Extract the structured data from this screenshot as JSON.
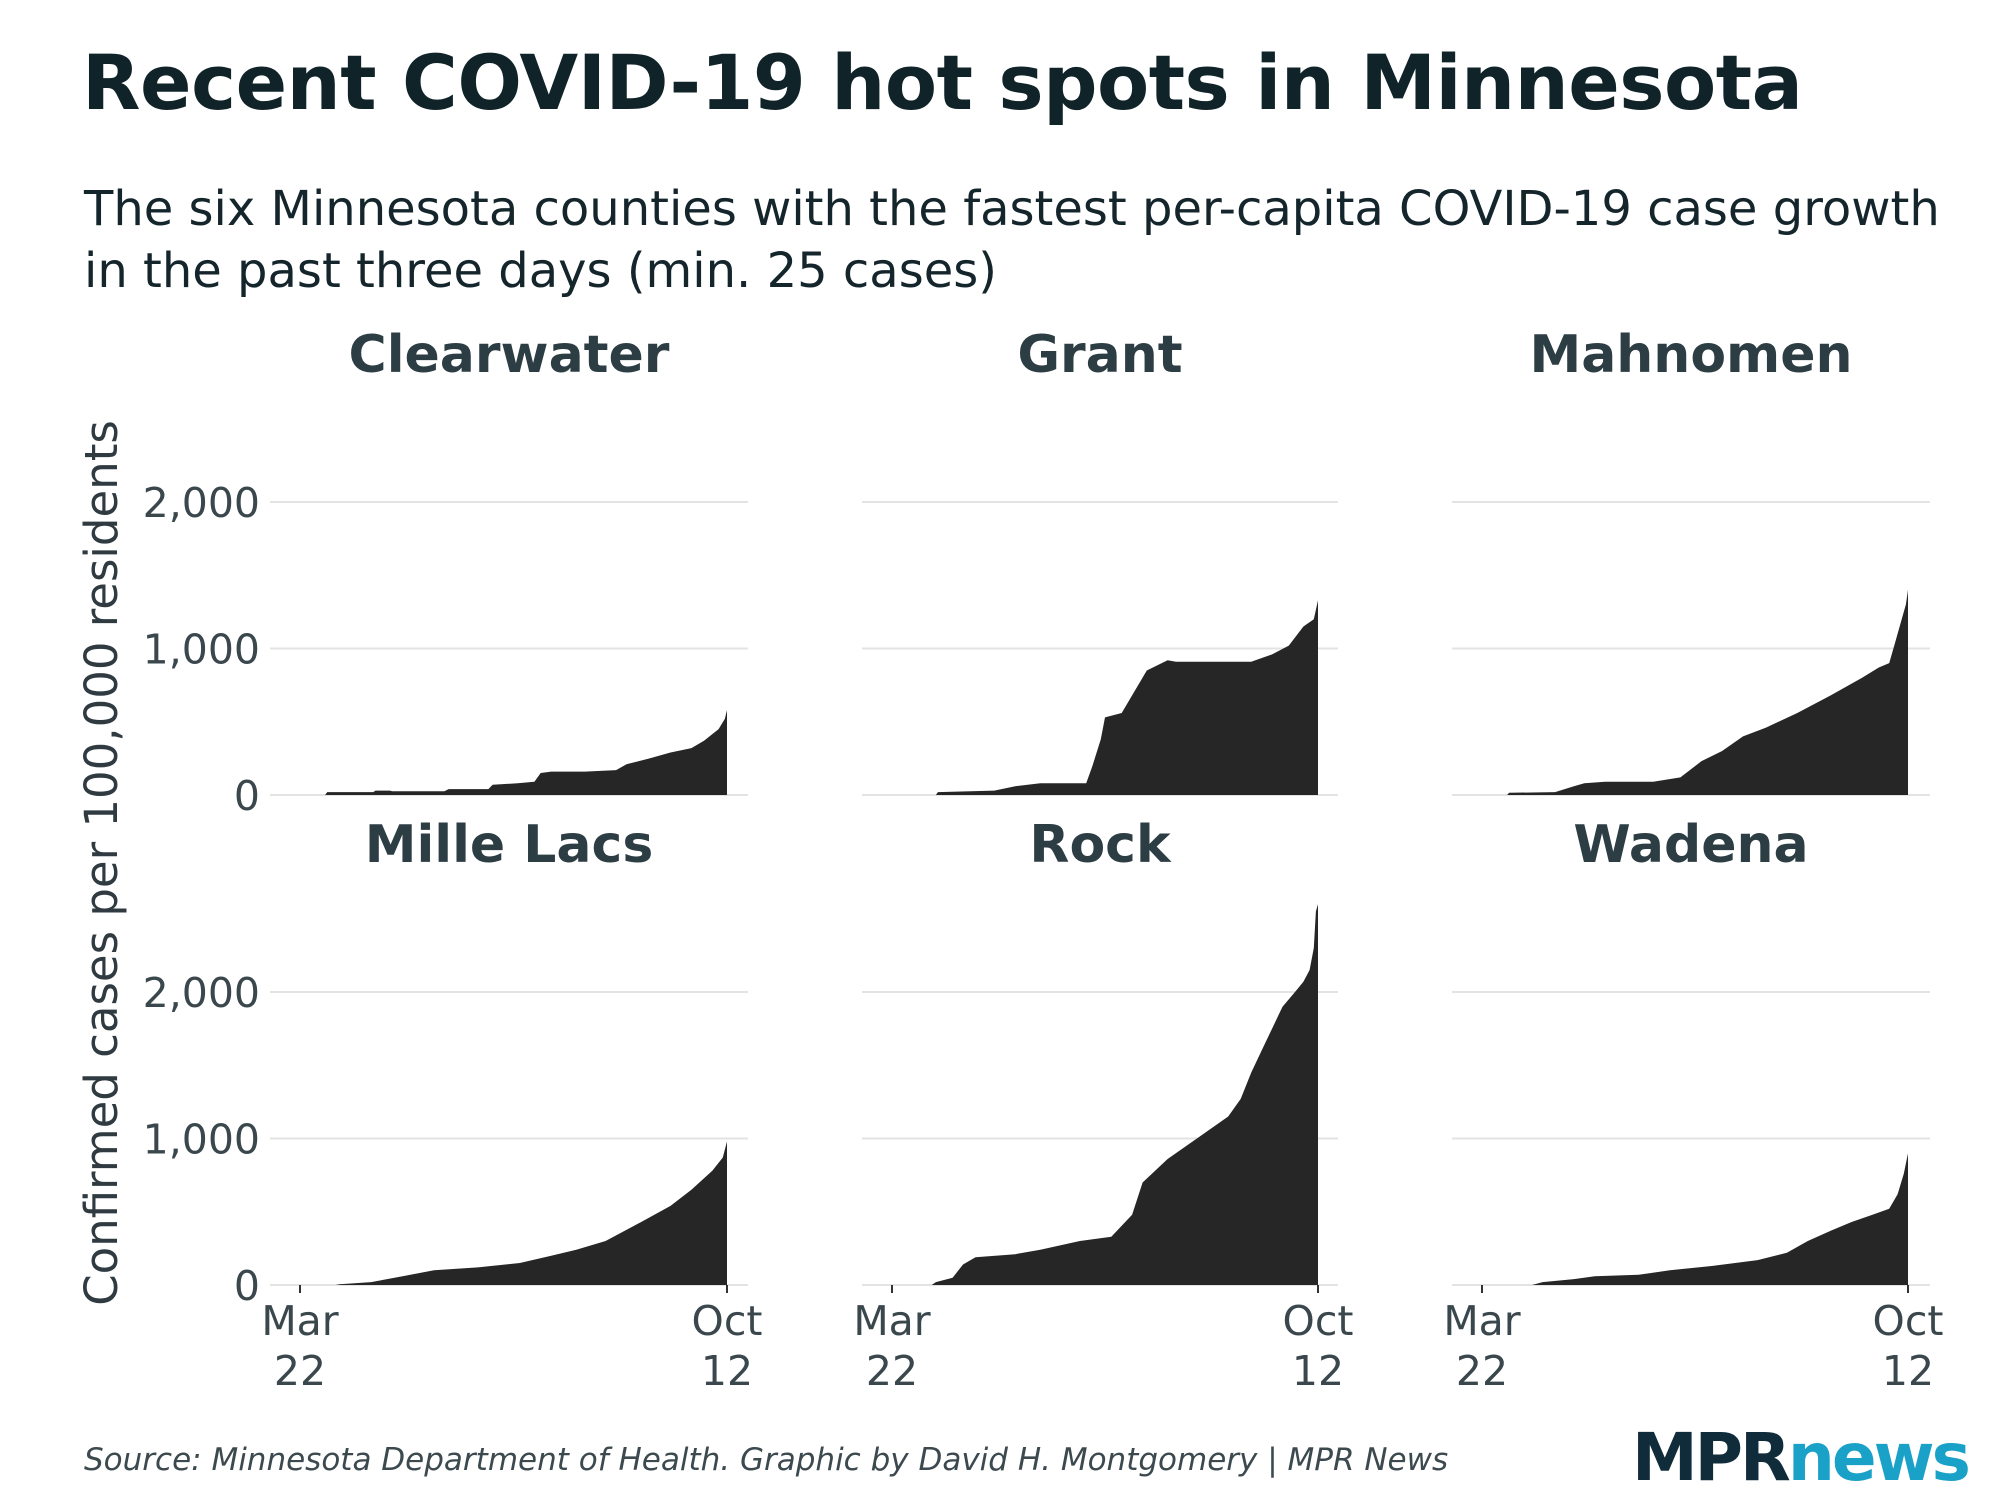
{
  "title": "Recent COVID-19 hot spots in Minnesota",
  "subtitle": "The six Minnesota counties with the fastest per-capita COVID-19 case growth in the past three days (min. 25 cases)",
  "source": "Source: Minnesota Department of Health. Graphic by David H. Montgomery | MPR News",
  "logo": {
    "mpr": "MPR",
    "news": "news"
  },
  "colors": {
    "area": "#262626",
    "grid": "#e3e3e3",
    "text": "#14252b",
    "accent": "#1aa1c8"
  },
  "chart_data": {
    "type": "area",
    "layout": "small-multiples-2x3",
    "ylabel": "Confirmed cases per 100,000 residents",
    "ylim": [
      0,
      2700
    ],
    "yticks": [
      0,
      1000,
      2000
    ],
    "ytick_labels": [
      "0",
      "1,000",
      "2,000"
    ],
    "x_start": "Mar 22",
    "x_end": "Oct 12",
    "xticks": [
      {
        "month": "Mar",
        "day": "22"
      },
      {
        "month": "Oct",
        "day": "12"
      }
    ],
    "grid": true,
    "panels": [
      {
        "name": "Clearwater",
        "points": [
          [
            "Mar 22",
            0
          ],
          [
            "Apr 3",
            0
          ],
          [
            "Apr 4",
            20
          ],
          [
            "Apr 26",
            20
          ],
          [
            "Apr 27",
            30
          ],
          [
            "May 4",
            30
          ],
          [
            "May 5",
            25
          ],
          [
            "May 30",
            25
          ],
          [
            "Jun 1",
            40
          ],
          [
            "Jun 20",
            40
          ],
          [
            "Jun 22",
            70
          ],
          [
            "Jul 4",
            80
          ],
          [
            "Jul 12",
            90
          ],
          [
            "Jul 15",
            150
          ],
          [
            "Jul 20",
            160
          ],
          [
            "Aug 5",
            160
          ],
          [
            "Aug 20",
            170
          ],
          [
            "Aug 25",
            210
          ],
          [
            "Sep 5",
            250
          ],
          [
            "Sep 15",
            290
          ],
          [
            "Sep 25",
            320
          ],
          [
            "Oct 1",
            370
          ],
          [
            "Oct 8",
            450
          ],
          [
            "Oct 11",
            520
          ],
          [
            "Oct 12",
            580
          ]
        ]
      },
      {
        "name": "Grant",
        "points": [
          [
            "Mar 22",
            0
          ],
          [
            "Apr 12",
            0
          ],
          [
            "Apr 13",
            20
          ],
          [
            "May 10",
            30
          ],
          [
            "May 20",
            60
          ],
          [
            "Jun 1",
            80
          ],
          [
            "Jun 23",
            80
          ],
          [
            "Jun 26",
            200
          ],
          [
            "Jun 30",
            380
          ],
          [
            "Jul 2",
            530
          ],
          [
            "Jul 10",
            560
          ],
          [
            "Jul 15",
            680
          ],
          [
            "Jul 22",
            850
          ],
          [
            "Aug 1",
            920
          ],
          [
            "Aug 5",
            910
          ],
          [
            "Sep 10",
            910
          ],
          [
            "Sep 20",
            960
          ],
          [
            "Sep 28",
            1020
          ],
          [
            "Oct 5",
            1150
          ],
          [
            "Oct 10",
            1200
          ],
          [
            "Oct 12",
            1330
          ]
        ]
      },
      {
        "name": "Mahnomen",
        "points": [
          [
            "Mar 22",
            0
          ],
          [
            "Apr 3",
            0
          ],
          [
            "Apr 4",
            15
          ],
          [
            "Apr 26",
            20
          ],
          [
            "May 5",
            60
          ],
          [
            "May 10",
            80
          ],
          [
            "May 20",
            90
          ],
          [
            "Jun 12",
            90
          ],
          [
            "Jun 25",
            120
          ],
          [
            "Jul 5",
            230
          ],
          [
            "Jul 15",
            300
          ],
          [
            "Jul 25",
            400
          ],
          [
            "Aug 5",
            460
          ],
          [
            "Aug 20",
            560
          ],
          [
            "Sep 5",
            680
          ],
          [
            "Sep 20",
            800
          ],
          [
            "Sep 28",
            870
          ],
          [
            "Oct 3",
            900
          ],
          [
            "Oct 6",
            1050
          ],
          [
            "Oct 9",
            1200
          ],
          [
            "Oct 11",
            1300
          ],
          [
            "Oct 12",
            1400
          ]
        ]
      },
      {
        "name": "Mille Lacs",
        "points": [
          [
            "Mar 22",
            0
          ],
          [
            "Apr 8",
            0
          ],
          [
            "Apr 10",
            5
          ],
          [
            "Apr 25",
            20
          ],
          [
            "May 10",
            60
          ],
          [
            "May 25",
            100
          ],
          [
            "Jun 15",
            120
          ],
          [
            "Jul 5",
            150
          ],
          [
            "Jul 20",
            200
          ],
          [
            "Aug 1",
            240
          ],
          [
            "Aug 15",
            300
          ],
          [
            "Sep 1",
            430
          ],
          [
            "Sep 15",
            540
          ],
          [
            "Sep 25",
            650
          ],
          [
            "Oct 5",
            780
          ],
          [
            "Oct 10",
            870
          ],
          [
            "Oct 12",
            980
          ]
        ]
      },
      {
        "name": "Rock",
        "points": [
          [
            "Mar 22",
            0
          ],
          [
            "Apr 10",
            0
          ],
          [
            "Apr 12",
            20
          ],
          [
            "Apr 20",
            50
          ],
          [
            "Apr 25",
            140
          ],
          [
            "May 1",
            190
          ],
          [
            "May 20",
            210
          ],
          [
            "Jun 1",
            240
          ],
          [
            "Jun 20",
            300
          ],
          [
            "Jul 5",
            330
          ],
          [
            "Jul 15",
            480
          ],
          [
            "Jul 20",
            700
          ],
          [
            "Aug 1",
            860
          ],
          [
            "Aug 15",
            1000
          ],
          [
            "Aug 30",
            1150
          ],
          [
            "Sep 5",
            1270
          ],
          [
            "Sep 10",
            1450
          ],
          [
            "Sep 15",
            1600
          ],
          [
            "Sep 20",
            1750
          ],
          [
            "Sep 25",
            1900
          ],
          [
            "Oct 1",
            2000
          ],
          [
            "Oct 5",
            2070
          ],
          [
            "Oct 8",
            2150
          ],
          [
            "Oct 10",
            2300
          ],
          [
            "Oct 11",
            2550
          ],
          [
            "Oct 12",
            2600
          ]
        ]
      },
      {
        "name": "Wadena",
        "points": [
          [
            "Mar 22",
            0
          ],
          [
            "Apr 15",
            0
          ],
          [
            "Apr 20",
            20
          ],
          [
            "May 5",
            40
          ],
          [
            "May 15",
            60
          ],
          [
            "Jun 5",
            70
          ],
          [
            "Jun 20",
            100
          ],
          [
            "Jul 10",
            130
          ],
          [
            "Aug 1",
            170
          ],
          [
            "Aug 15",
            220
          ],
          [
            "Aug 25",
            300
          ],
          [
            "Sep 5",
            370
          ],
          [
            "Sep 15",
            430
          ],
          [
            "Sep 25",
            480
          ],
          [
            "Oct 3",
            520
          ],
          [
            "Oct 7",
            620
          ],
          [
            "Oct 10",
            760
          ],
          [
            "Oct 12",
            900
          ]
        ]
      }
    ]
  }
}
